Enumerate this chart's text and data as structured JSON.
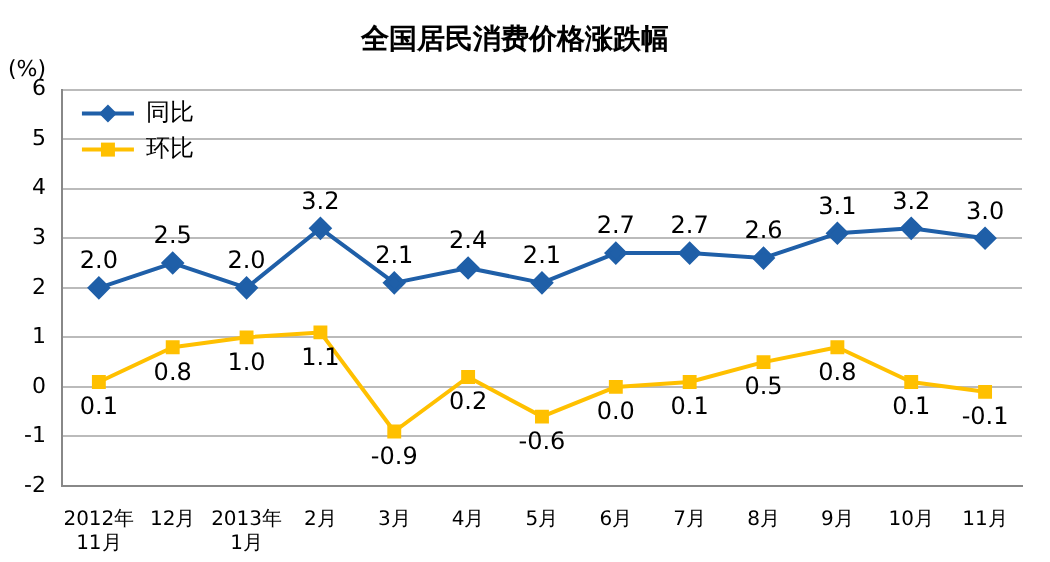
{
  "chart_data": {
    "type": "line",
    "title": "全国居民消费价格涨跌幅",
    "ylabel": "(%)",
    "categories": [
      "2012年\n11月",
      "12月",
      "2013年\n1月",
      "2月",
      "3月",
      "4月",
      "5月",
      "6月",
      "7月",
      "8月",
      "9月",
      "10月",
      "11月"
    ],
    "series": [
      {
        "name": "同比",
        "color": "#1f5fa8",
        "marker": "diamond",
        "values": [
          2.0,
          2.5,
          2.0,
          3.2,
          2.1,
          2.4,
          2.1,
          2.7,
          2.7,
          2.6,
          3.1,
          3.2,
          3.0
        ],
        "value_labels": [
          "2.0",
          "2.5",
          "2.0",
          "3.2",
          "2.1",
          "2.4",
          "2.1",
          "2.7",
          "2.7",
          "2.6",
          "3.1",
          "3.2",
          "3.0"
        ]
      },
      {
        "name": "环比",
        "color": "#ffc000",
        "marker": "square",
        "values": [
          0.1,
          0.8,
          1.0,
          1.1,
          -0.9,
          0.2,
          -0.6,
          0.0,
          0.1,
          0.5,
          0.8,
          0.1,
          -0.1
        ],
        "value_labels": [
          "0.1",
          "0.8",
          "1.0",
          "1.1",
          "-0.9",
          "0.2",
          "-0.6",
          "0.0",
          "0.1",
          "0.5",
          "0.8",
          "0.1",
          "-0.1"
        ]
      }
    ],
    "ylim": [
      -2,
      6
    ],
    "yticks": [
      -2,
      -1,
      0,
      1,
      2,
      3,
      4,
      5,
      6
    ],
    "grid": "y",
    "legend": "top left"
  }
}
